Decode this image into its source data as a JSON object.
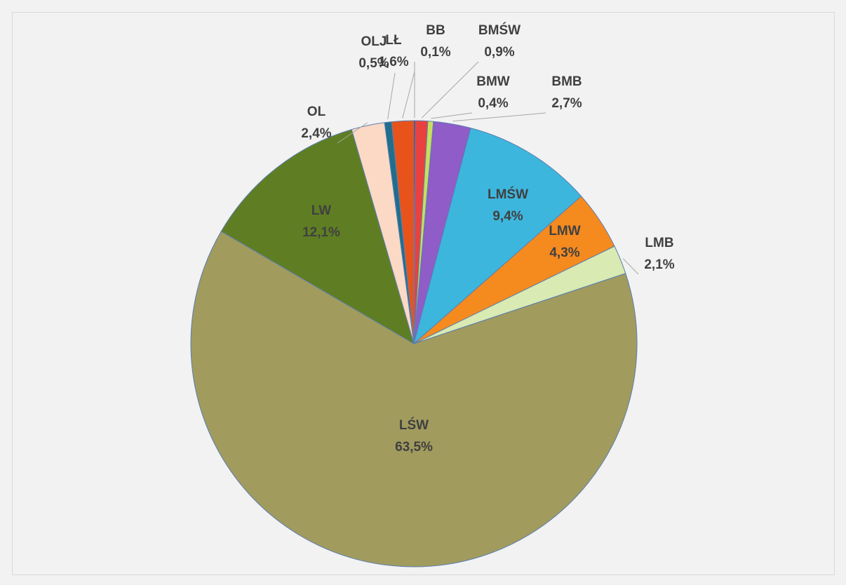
{
  "chart_data": {
    "type": "pie",
    "categories": [
      "BB",
      "BMŚW",
      "BMW",
      "BMB",
      "LMŚW",
      "LMW",
      "LMB",
      "LŚW",
      "LW",
      "OL",
      "OLJ",
      "LŁ"
    ],
    "values": [
      0.1,
      0.9,
      0.4,
      2.7,
      9.4,
      4.3,
      2.1,
      63.5,
      12.1,
      2.4,
      0.5,
      1.6
    ],
    "value_labels": [
      "0,1%",
      "0,9%",
      "0,4%",
      "2,7%",
      "9,4%",
      "4,3%",
      "2,1%",
      "63,5%",
      "12,1%",
      "2,4%",
      "0,5%",
      "1,6%"
    ],
    "colors": [
      "#8b1e1e",
      "#e8413f",
      "#c7df5c",
      "#8f5cc8",
      "#3db6dd",
      "#f58a1f",
      "#d9eab2",
      "#a19b5e",
      "#5f7e23",
      "#fcd9c4",
      "#1f6e8c",
      "#e8531c"
    ]
  }
}
